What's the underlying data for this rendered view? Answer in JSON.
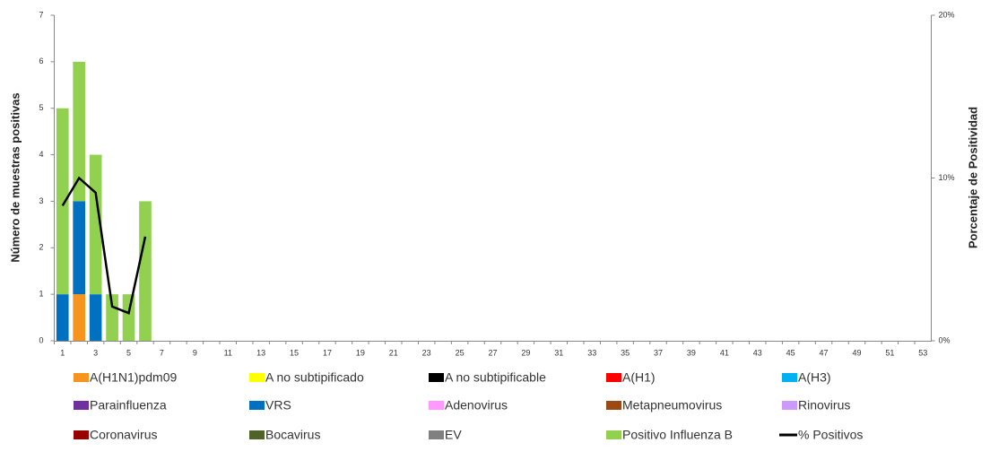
{
  "chart_data": {
    "type": "bar",
    "y_label": "Número de muestras positivas",
    "y2_label": "Porcentaje de Positividad",
    "categories": [
      "1",
      null,
      "3",
      null,
      "5",
      null,
      "7",
      null,
      "9",
      null,
      "11",
      null,
      "13",
      null,
      "15",
      null,
      "17",
      null,
      "19",
      null,
      "21",
      null,
      "23",
      null,
      "25",
      null,
      "27",
      null,
      "29",
      null,
      "31",
      null,
      "33",
      null,
      "35",
      null,
      "37",
      null,
      "39",
      null,
      "41",
      null,
      "43",
      null,
      "45",
      null,
      "47",
      null,
      "49",
      null,
      "51",
      null,
      "53"
    ],
    "ylim": [
      0,
      7
    ],
    "yticks": [
      0,
      1,
      2,
      3,
      4,
      5,
      6,
      7
    ],
    "y2lim": [
      0,
      20
    ],
    "y2ticks": [
      {
        "value": 0,
        "label": "0%"
      },
      {
        "value": 10,
        "label": "10%"
      },
      {
        "value": 20,
        "label": "20%"
      }
    ],
    "stacked": true,
    "series": [
      {
        "name": "A(H1N1)pdm09",
        "color": "#f7941d",
        "values": [
          0,
          1,
          0,
          0,
          0,
          0,
          null,
          null,
          null,
          null,
          null,
          null,
          null,
          null,
          null,
          null,
          null,
          null,
          null,
          null,
          null,
          null,
          null,
          null,
          null,
          null,
          null,
          null,
          null,
          null,
          null,
          null,
          null,
          null,
          null,
          null,
          null,
          null,
          null,
          null,
          null,
          null,
          null,
          null,
          null,
          null,
          null,
          null,
          null,
          null,
          null,
          null,
          null
        ]
      },
      {
        "name": "A no subtipificado",
        "color": "#ffff00",
        "values": [
          null,
          null,
          null,
          null,
          null,
          null,
          null,
          null,
          null,
          null,
          null,
          null,
          null,
          null,
          null,
          null,
          null,
          null,
          null,
          null,
          null,
          null,
          null,
          null,
          null,
          null,
          null,
          null,
          null,
          null,
          null,
          null,
          null,
          null,
          null,
          null,
          null,
          null,
          null,
          null,
          null,
          null,
          null,
          null,
          null,
          null,
          null,
          null,
          null,
          null,
          null,
          null,
          null
        ]
      },
      {
        "name": "A no subtipificable",
        "color": "#000000",
        "values": [
          null,
          null,
          null,
          null,
          null,
          null,
          null,
          null,
          null,
          null,
          null,
          null,
          null,
          null,
          null,
          null,
          null,
          null,
          null,
          null,
          null,
          null,
          null,
          null,
          null,
          null,
          null,
          null,
          null,
          null,
          null,
          null,
          null,
          null,
          null,
          null,
          null,
          null,
          null,
          null,
          null,
          null,
          null,
          null,
          null,
          null,
          null,
          null,
          null,
          null,
          null,
          null,
          null
        ]
      },
      {
        "name": "A(H1)",
        "color": "#ff0000",
        "values": [
          null,
          null,
          null,
          null,
          null,
          null,
          null,
          null,
          null,
          null,
          null,
          null,
          null,
          null,
          null,
          null,
          null,
          null,
          null,
          null,
          null,
          null,
          null,
          null,
          null,
          null,
          null,
          null,
          null,
          null,
          null,
          null,
          null,
          null,
          null,
          null,
          null,
          null,
          null,
          null,
          null,
          null,
          null,
          null,
          null,
          null,
          null,
          null,
          null,
          null,
          null,
          null,
          null
        ]
      },
      {
        "name": "A(H3)",
        "color": "#00b0f0",
        "values": [
          null,
          null,
          null,
          null,
          null,
          null,
          null,
          null,
          null,
          null,
          null,
          null,
          null,
          null,
          null,
          null,
          null,
          null,
          null,
          null,
          null,
          null,
          null,
          null,
          null,
          null,
          null,
          null,
          null,
          null,
          null,
          null,
          null,
          null,
          null,
          null,
          null,
          null,
          null,
          null,
          null,
          null,
          null,
          null,
          null,
          null,
          null,
          null,
          null,
          null,
          null,
          null,
          null
        ]
      },
      {
        "name": "Parainfluenza",
        "color": "#7030a0",
        "values": [
          null,
          null,
          null,
          null,
          null,
          null,
          null,
          null,
          null,
          null,
          null,
          null,
          null,
          null,
          null,
          null,
          null,
          null,
          null,
          null,
          null,
          null,
          null,
          null,
          null,
          null,
          null,
          null,
          null,
          null,
          null,
          null,
          null,
          null,
          null,
          null,
          null,
          null,
          null,
          null,
          null,
          null,
          null,
          null,
          null,
          null,
          null,
          null,
          null,
          null,
          null,
          null,
          null
        ]
      },
      {
        "name": "VRS",
        "color": "#0070c0",
        "values": [
          1,
          2,
          1,
          0,
          0,
          0,
          null,
          null,
          null,
          null,
          null,
          null,
          null,
          null,
          null,
          null,
          null,
          null,
          null,
          null,
          null,
          null,
          null,
          null,
          null,
          null,
          null,
          null,
          null,
          null,
          null,
          null,
          null,
          null,
          null,
          null,
          null,
          null,
          null,
          null,
          null,
          null,
          null,
          null,
          null,
          null,
          null,
          null,
          null,
          null,
          null,
          null,
          null
        ]
      },
      {
        "name": "Adenovirus",
        "color": "#ff99ff",
        "values": [
          null,
          null,
          null,
          null,
          null,
          null,
          null,
          null,
          null,
          null,
          null,
          null,
          null,
          null,
          null,
          null,
          null,
          null,
          null,
          null,
          null,
          null,
          null,
          null,
          null,
          null,
          null,
          null,
          null,
          null,
          null,
          null,
          null,
          null,
          null,
          null,
          null,
          null,
          null,
          null,
          null,
          null,
          null,
          null,
          null,
          null,
          null,
          null,
          null,
          null,
          null,
          null,
          null
        ]
      },
      {
        "name": "Metapneumovirus",
        "color": "#9c4a12",
        "values": [
          null,
          null,
          null,
          null,
          null,
          null,
          null,
          null,
          null,
          null,
          null,
          null,
          null,
          null,
          null,
          null,
          null,
          null,
          null,
          null,
          null,
          null,
          null,
          null,
          null,
          null,
          null,
          null,
          null,
          null,
          null,
          null,
          null,
          null,
          null,
          null,
          null,
          null,
          null,
          null,
          null,
          null,
          null,
          null,
          null,
          null,
          null,
          null,
          null,
          null,
          null,
          null,
          null
        ]
      },
      {
        "name": "Rinovirus",
        "color": "#cc99ff",
        "values": [
          null,
          null,
          null,
          null,
          null,
          null,
          null,
          null,
          null,
          null,
          null,
          null,
          null,
          null,
          null,
          null,
          null,
          null,
          null,
          null,
          null,
          null,
          null,
          null,
          null,
          null,
          null,
          null,
          null,
          null,
          null,
          null,
          null,
          null,
          null,
          null,
          null,
          null,
          null,
          null,
          null,
          null,
          null,
          null,
          null,
          null,
          null,
          null,
          null,
          null,
          null,
          null,
          null
        ]
      },
      {
        "name": "Coronavirus",
        "color": "#990000",
        "values": [
          null,
          null,
          null,
          null,
          null,
          null,
          null,
          null,
          null,
          null,
          null,
          null,
          null,
          null,
          null,
          null,
          null,
          null,
          null,
          null,
          null,
          null,
          null,
          null,
          null,
          null,
          null,
          null,
          null,
          null,
          null,
          null,
          null,
          null,
          null,
          null,
          null,
          null,
          null,
          null,
          null,
          null,
          null,
          null,
          null,
          null,
          null,
          null,
          null,
          null,
          null,
          null,
          null
        ]
      },
      {
        "name": "Bocavirus",
        "color": "#4f6228",
        "values": [
          null,
          null,
          null,
          null,
          null,
          null,
          null,
          null,
          null,
          null,
          null,
          null,
          null,
          null,
          null,
          null,
          null,
          null,
          null,
          null,
          null,
          null,
          null,
          null,
          null,
          null,
          null,
          null,
          null,
          null,
          null,
          null,
          null,
          null,
          null,
          null,
          null,
          null,
          null,
          null,
          null,
          null,
          null,
          null,
          null,
          null,
          null,
          null,
          null,
          null,
          null,
          null,
          null
        ]
      },
      {
        "name": "EV",
        "color": "#808080",
        "values": [
          null,
          null,
          null,
          null,
          null,
          null,
          null,
          null,
          null,
          null,
          null,
          null,
          null,
          null,
          null,
          null,
          null,
          null,
          null,
          null,
          null,
          null,
          null,
          null,
          null,
          null,
          null,
          null,
          null,
          null,
          null,
          null,
          null,
          null,
          null,
          null,
          null,
          null,
          null,
          null,
          null,
          null,
          null,
          null,
          null,
          null,
          null,
          null,
          null,
          null,
          null,
          null,
          null
        ]
      },
      {
        "name": "Positivo Influenza  B",
        "color": "#92d050",
        "values": [
          4,
          3,
          3,
          1,
          1,
          3,
          null,
          null,
          null,
          null,
          null,
          null,
          null,
          null,
          null,
          null,
          null,
          null,
          null,
          null,
          null,
          null,
          null,
          null,
          null,
          null,
          null,
          null,
          null,
          null,
          null,
          null,
          null,
          null,
          null,
          null,
          null,
          null,
          null,
          null,
          null,
          null,
          null,
          null,
          null,
          null,
          null,
          null,
          null,
          null,
          null,
          null,
          null
        ]
      },
      {
        "name": "% Positivos",
        "color": "#000000",
        "type": "line",
        "axis": "y2",
        "values": [
          8.3,
          10,
          9.1,
          2.1,
          1.7,
          6.4,
          null,
          null,
          null,
          null,
          null,
          null,
          null,
          null,
          null,
          null,
          null,
          null,
          null,
          null,
          null,
          null,
          null,
          null,
          null,
          null,
          null,
          null,
          null,
          null,
          null,
          null,
          null,
          null,
          null,
          null,
          null,
          null,
          null,
          null,
          null,
          null,
          null,
          null,
          null,
          null,
          null,
          null,
          null,
          null,
          null,
          null,
          null
        ]
      }
    ]
  }
}
